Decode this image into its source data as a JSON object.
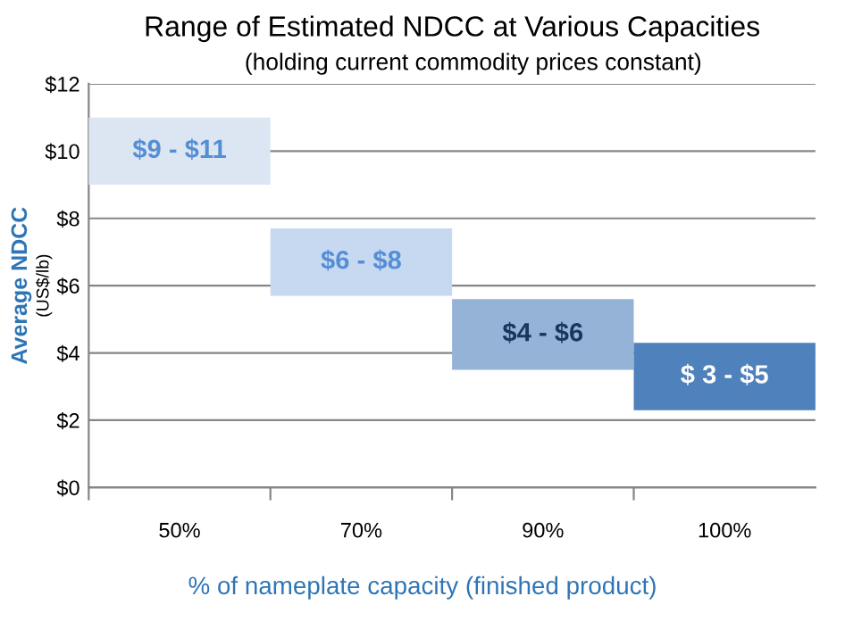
{
  "chart_data": {
    "type": "bar",
    "title": "Range of Estimated NDCC at Various Capacities",
    "subtitle": "(holding current commodity prices constant)",
    "ylabel": "Average NDCC\n(US$/lb)",
    "xlabel": "% of nameplate capacity (finished product)",
    "categories": [
      "50%",
      "70%",
      "90%",
      "100%"
    ],
    "base": [
      9,
      5.7,
      3.5,
      2.3
    ],
    "values": [
      2,
      2,
      2.1,
      2
    ],
    "annotations": [
      "$9 - $11",
      "$6 - $8",
      "$4 - $6",
      "$ 3 - $5"
    ],
    "colors": [
      "#dce6f2",
      "#c6d9f1",
      "#95b3d7",
      "#4f81bd"
    ],
    "ylim": [
      0,
      12
    ],
    "yticks": [
      {
        "value": 0,
        "label": "$0"
      },
      {
        "value": 2,
        "label": "$2"
      },
      {
        "value": 4,
        "label": "$4"
      },
      {
        "value": 6,
        "label": "$6"
      },
      {
        "value": 8,
        "label": "$8"
      },
      {
        "value": 10,
        "label": "$10"
      },
      {
        "value": 12,
        "label": "$12"
      }
    ],
    "grid": "y",
    "legend": false
  }
}
